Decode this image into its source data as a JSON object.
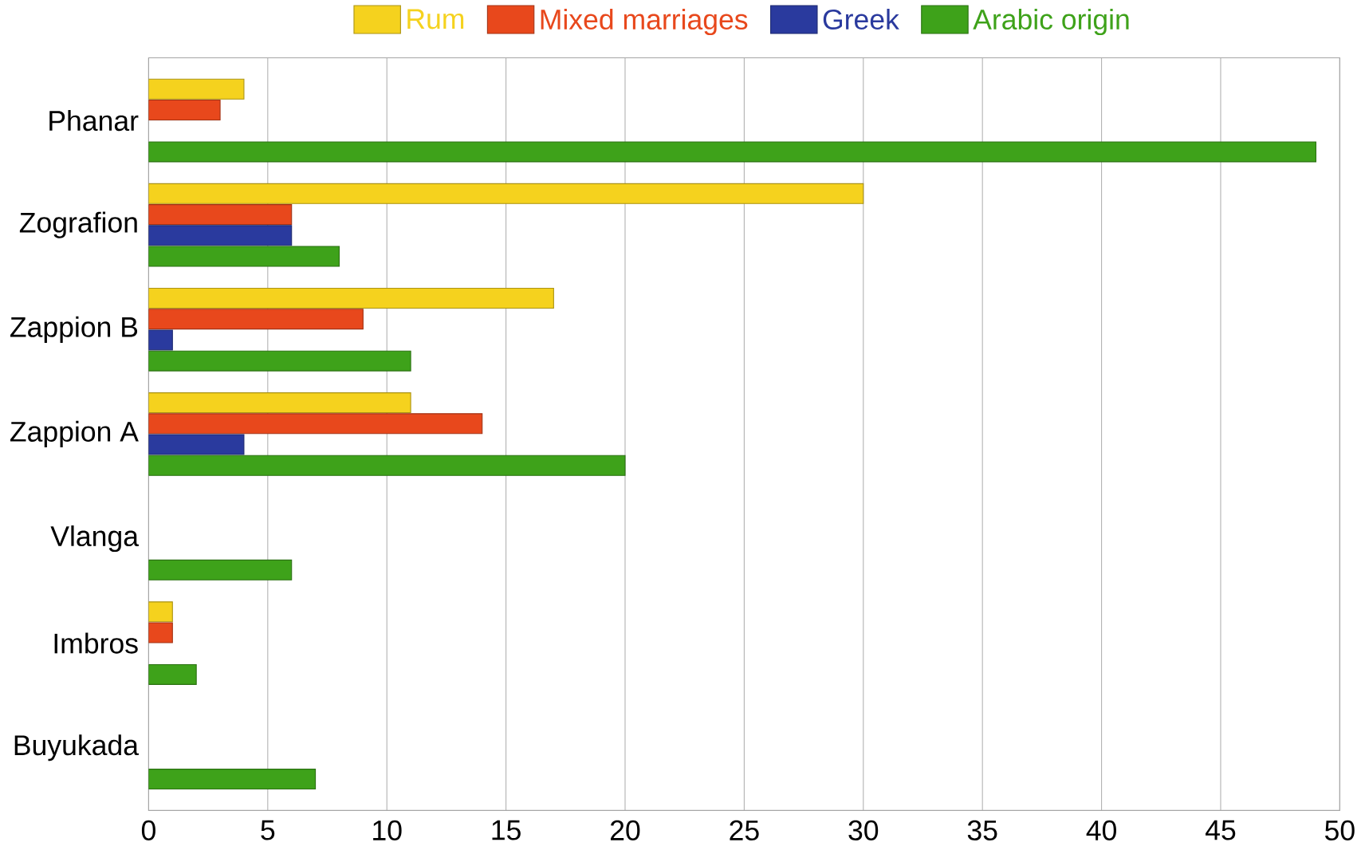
{
  "chart_data": {
    "type": "bar",
    "orientation": "horizontal",
    "categories": [
      "Phanar",
      "Zografion",
      "Zappion B",
      "Zappion A",
      "Vlanga",
      "Imbros",
      "Buyukada"
    ],
    "series": [
      {
        "name": "Rum",
        "color": "#f5d21e",
        "values": [
          4,
          30,
          17,
          11,
          null,
          1,
          null
        ]
      },
      {
        "name": "Mixed marriages",
        "color": "#e8481c",
        "values": [
          3,
          6,
          9,
          14,
          null,
          1,
          null
        ]
      },
      {
        "name": "Greek",
        "color": "#2a3a9e",
        "values": [
          null,
          6,
          1,
          4,
          null,
          null,
          null
        ]
      },
      {
        "name": "Arabic origin",
        "color": "#3ea21a",
        "values": [
          49,
          8,
          11,
          20,
          6,
          2,
          7
        ]
      }
    ],
    "xlim": [
      0,
      50
    ],
    "xticks": [
      0,
      5,
      10,
      15,
      20,
      25,
      30,
      35,
      40,
      45,
      50
    ],
    "grid": "x",
    "legend": "top"
  }
}
